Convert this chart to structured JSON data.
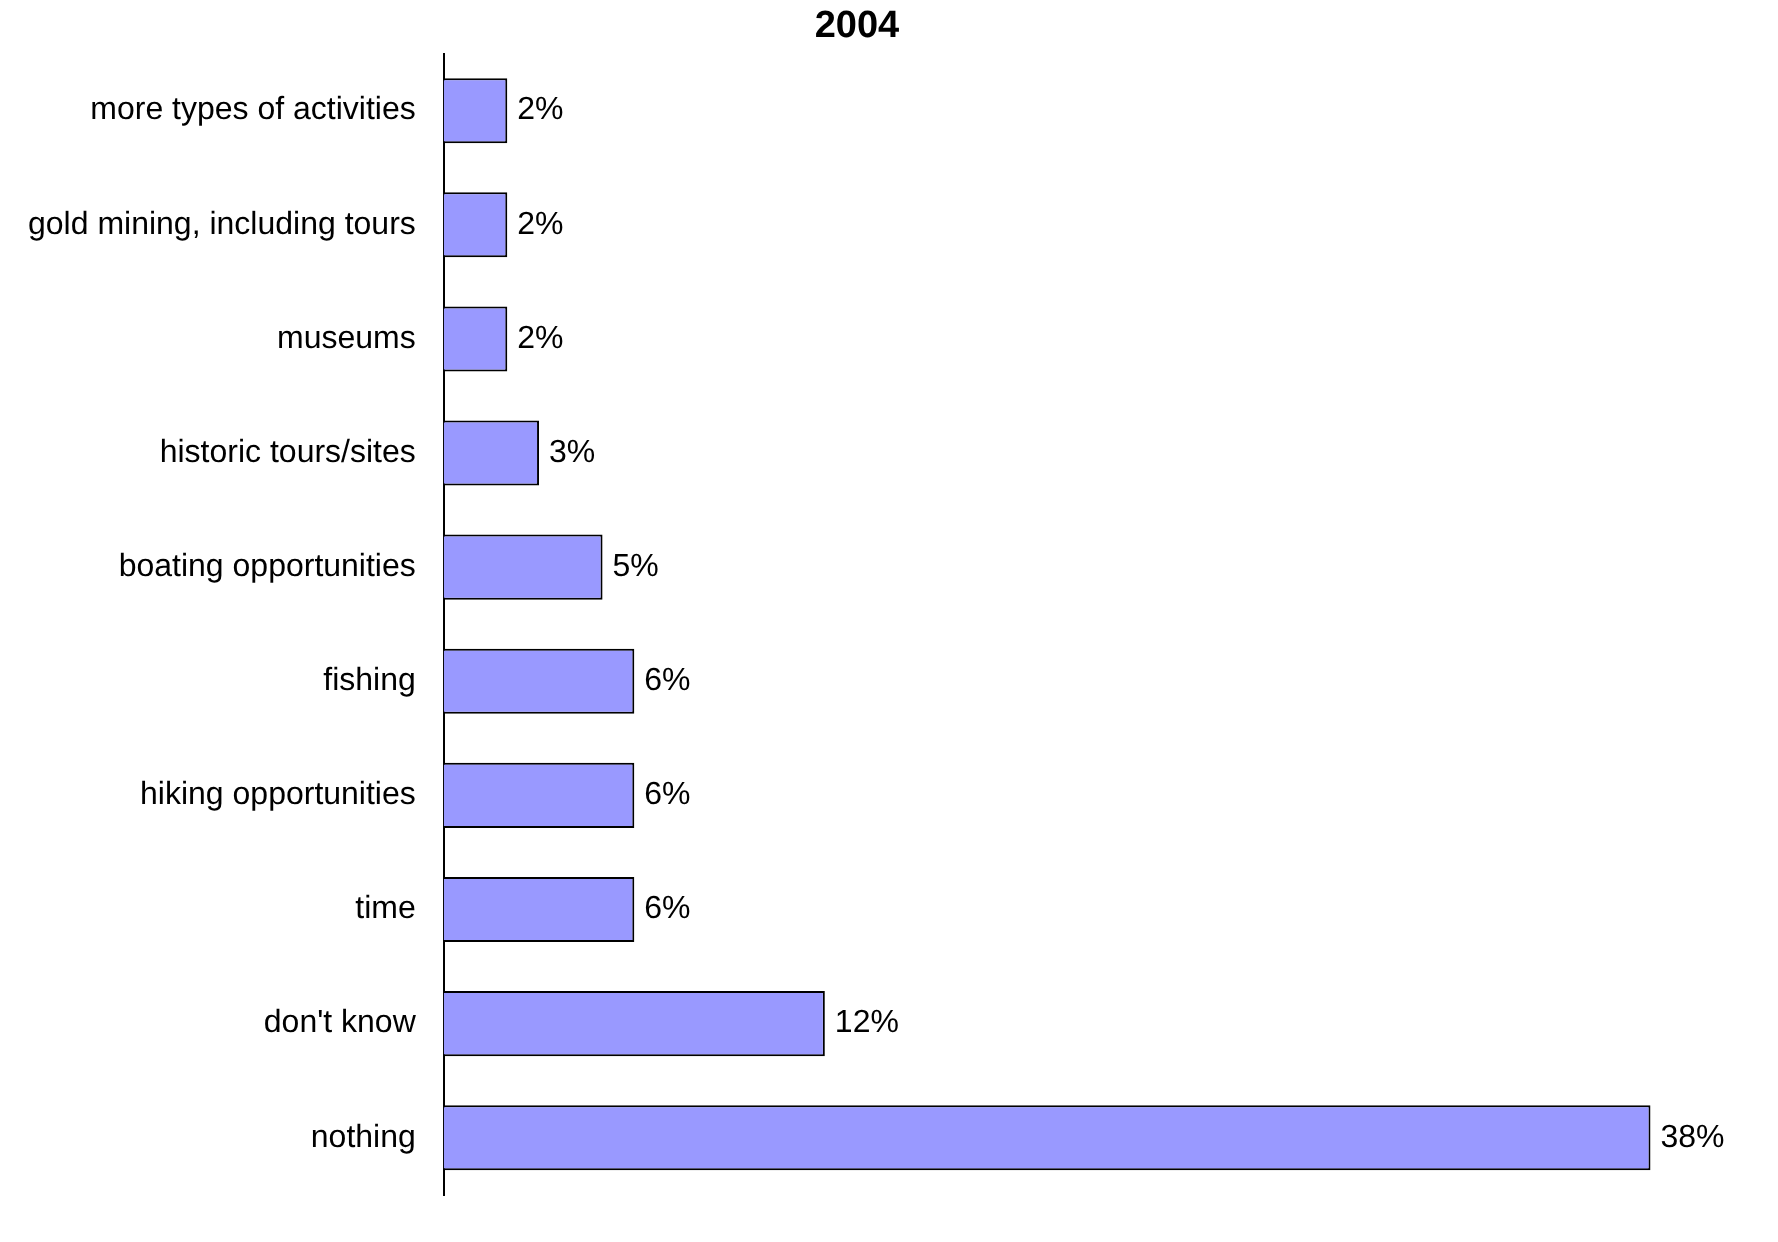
{
  "chart_data": {
    "type": "bar",
    "orientation": "horizontal",
    "title": "2004",
    "categories": [
      "more types of activities",
      "gold mining, including tours",
      "museums",
      "historic tours/sites",
      "boating opportunities",
      "fishing",
      "hiking opportunities",
      "time",
      "don't know",
      "nothing"
    ],
    "values": [
      2,
      2,
      2,
      3,
      5,
      6,
      6,
      6,
      12,
      38
    ],
    "value_labels": [
      "2%",
      "2%",
      "2%",
      "3%",
      "5%",
      "6%",
      "6%",
      "6%",
      "12%",
      "38%"
    ],
    "color": "#9999ff"
  }
}
